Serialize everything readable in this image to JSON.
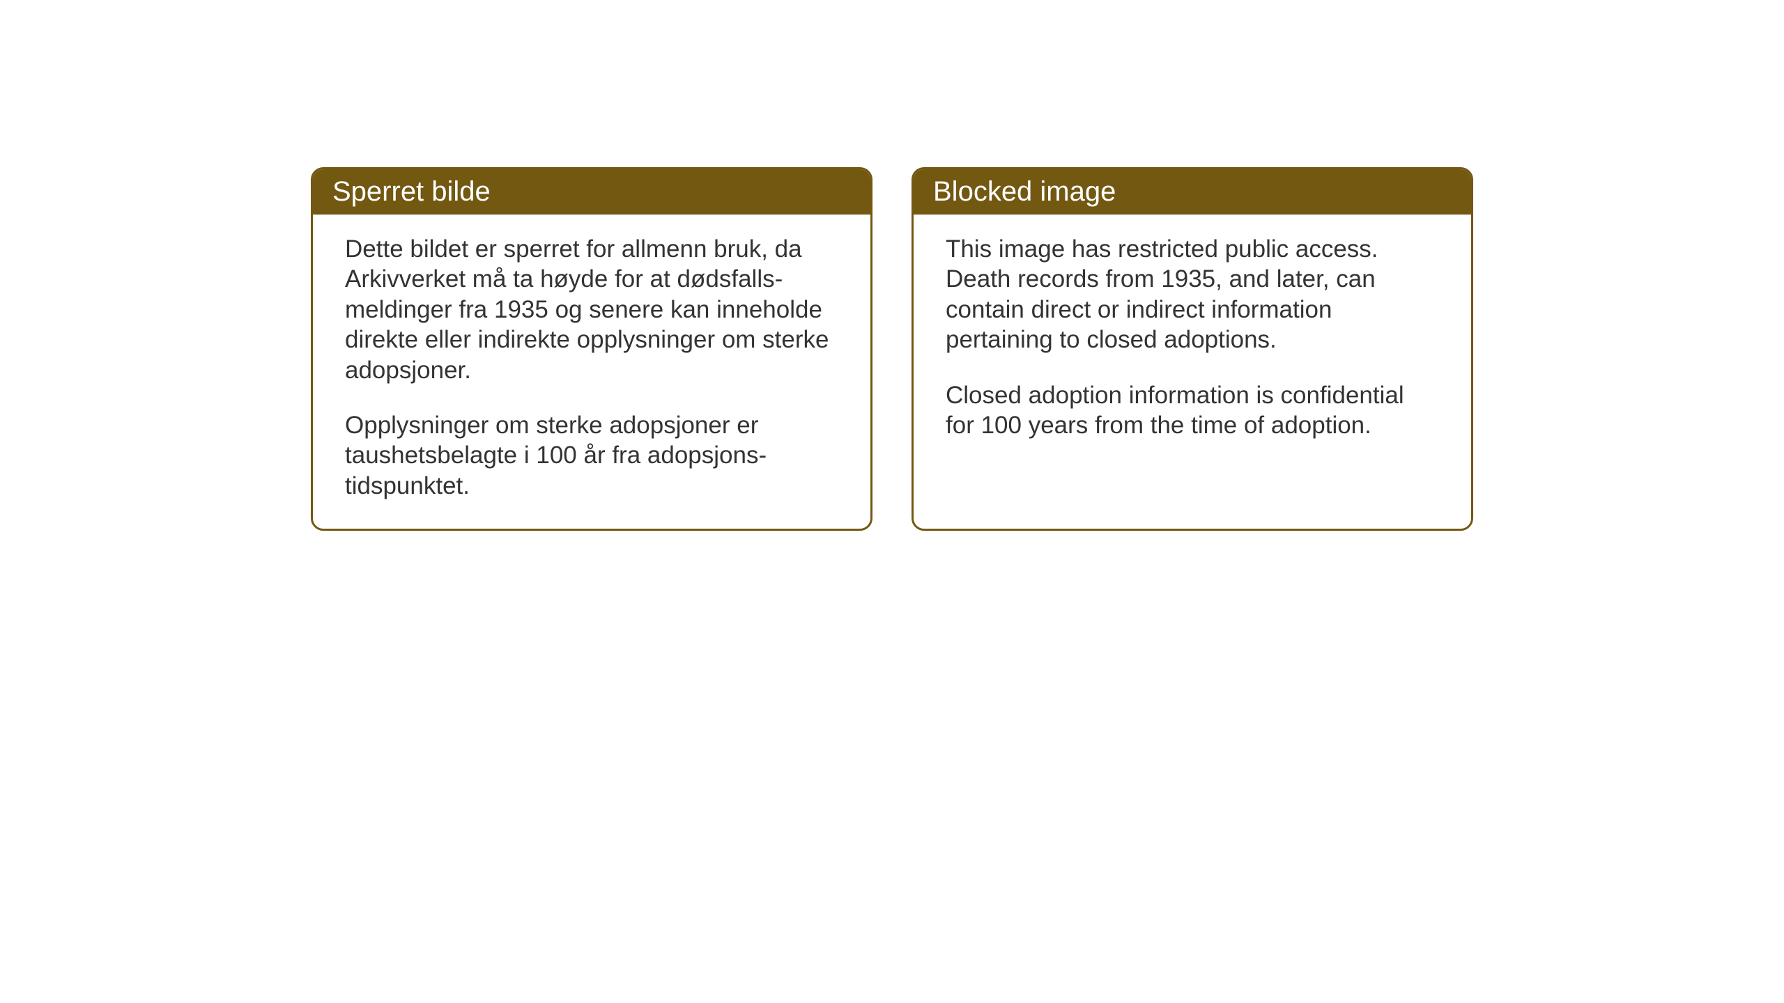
{
  "cards": {
    "norwegian": {
      "title": "Sperret bilde",
      "paragraph1": "Dette bildet er sperret for allmenn bruk, da Arkivverket må ta høyde for at dødsfalls-meldinger fra 1935 og senere kan inneholde direkte eller indirekte opplysninger om sterke adopsjoner.",
      "paragraph2": "Opplysninger om sterke adopsjoner er taushetsbelagte i 100 år fra adopsjons-tidspunktet."
    },
    "english": {
      "title": "Blocked image",
      "paragraph1": "This image has restricted public access. Death records from 1935, and later, can contain direct or indirect information pertaining to closed adoptions.",
      "paragraph2": "Closed adoption information is confidential for 100 years from the time of adoption."
    }
  },
  "styling": {
    "header_background": "#735812",
    "header_text_color": "#ffffff",
    "body_text_color": "#333333",
    "card_border_color": "#735812",
    "card_background": "#ffffff",
    "page_background": "#ffffff",
    "header_font_size": 40,
    "body_font_size": 35,
    "border_radius": 18,
    "border_width": 3
  }
}
